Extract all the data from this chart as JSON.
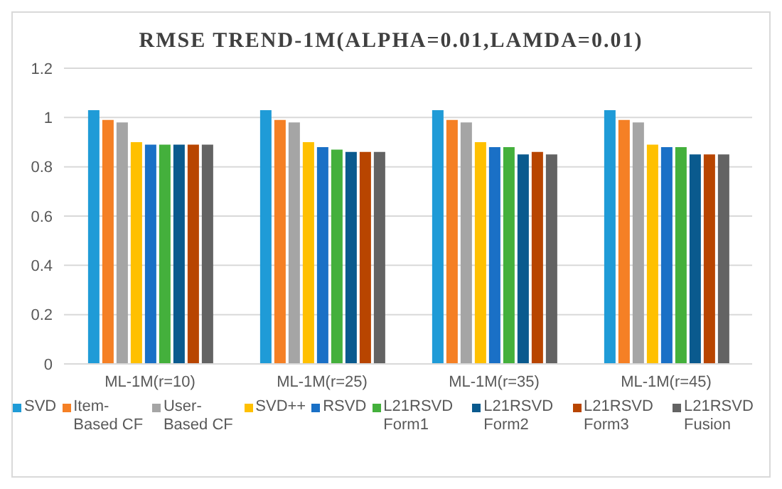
{
  "chart_data": {
    "type": "bar",
    "title": "RMSE TREND-1M(ALPHA=0.01,LAMDA=0.01)",
    "categories": [
      "ML-1M(r=10)",
      "ML-1M(r=25)",
      "ML-1M(r=35)",
      "ML-1M(r=45)"
    ],
    "series": [
      {
        "name": "SVD",
        "color": "#1f9bd7",
        "values": [
          1.03,
          1.03,
          1.03,
          1.03
        ]
      },
      {
        "name": "Item-Based CF",
        "color": "#f58025",
        "values": [
          0.99,
          0.99,
          0.99,
          0.99
        ]
      },
      {
        "name": "User-Based CF",
        "color": "#a5a5a5",
        "values": [
          0.98,
          0.98,
          0.98,
          0.98
        ]
      },
      {
        "name": "SVD++",
        "color": "#ffc000",
        "values": [
          0.9,
          0.9,
          0.9,
          0.89
        ]
      },
      {
        "name": "RSVD",
        "color": "#1a70c6",
        "values": [
          0.89,
          0.88,
          0.88,
          0.88
        ]
      },
      {
        "name": "L21RSVD Form1",
        "color": "#44b03c",
        "values": [
          0.89,
          0.87,
          0.88,
          0.88
        ]
      },
      {
        "name": "L21RSVD Form2",
        "color": "#0a5a8e",
        "values": [
          0.89,
          0.86,
          0.85,
          0.85
        ]
      },
      {
        "name": "L21RSVD Form3",
        "color": "#b84500",
        "values": [
          0.89,
          0.86,
          0.86,
          0.85
        ]
      },
      {
        "name": "L21RSVD Fusion",
        "color": "#636363",
        "values": [
          0.89,
          0.86,
          0.85,
          0.85
        ]
      }
    ],
    "ylim": [
      0,
      1.2
    ],
    "yticks": [
      0,
      0.2,
      0.4,
      0.6,
      0.8,
      1,
      1.2
    ],
    "grid": "y",
    "legend": "bottom"
  }
}
